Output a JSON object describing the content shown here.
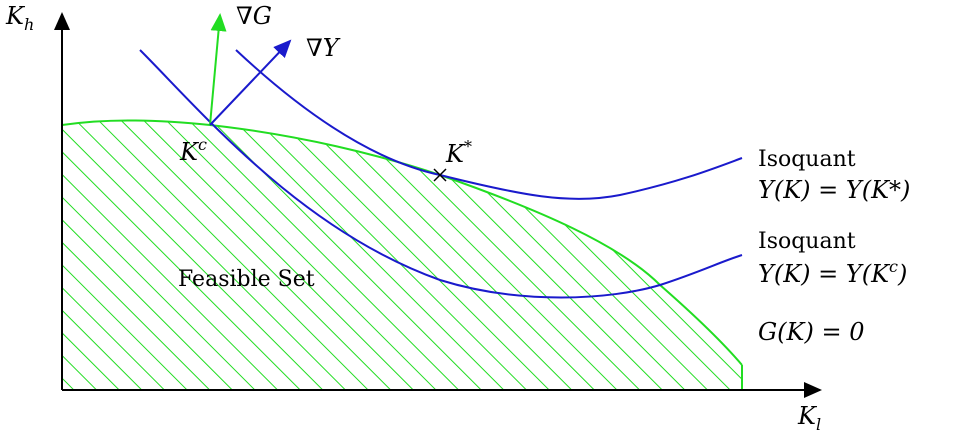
{
  "axes": {
    "x_label": "K",
    "x_label_sub": "l",
    "y_label": "K",
    "y_label_sub": "h"
  },
  "vectors": {
    "grad_g": "∇G",
    "grad_y": "∇Y"
  },
  "points": {
    "kc_main": "K",
    "kc_sup": "c",
    "kstar_main": "K",
    "kstar_sup": "*"
  },
  "region": {
    "feasible_label": "Feasible Set"
  },
  "curves": {
    "upper_isoquant_title": "Isoquant",
    "upper_isoquant_eq": "Y(K) = Y(K*)",
    "lower_isoquant_title": "Isoquant",
    "lower_isoquant_eq": "Y(K) = Y(K",
    "lower_isoquant_sup": "c",
    "lower_isoquant_close": ")",
    "constraint_eq": "G(K) = 0"
  },
  "colors": {
    "isoquant": "#1a1acc",
    "constraint_hatch": "#22dd22",
    "axis": "#000000"
  }
}
